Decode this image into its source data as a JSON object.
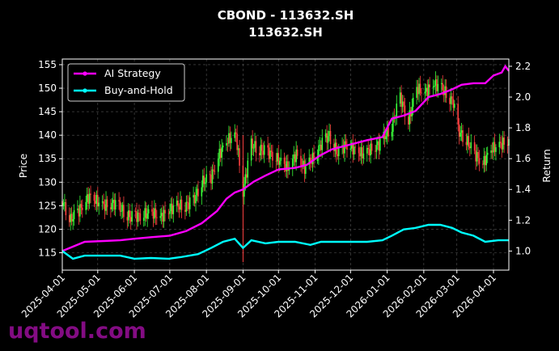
{
  "chart_data": {
    "type": "line",
    "title": "CBOND - 113632.SH",
    "subtitle": "113632.SH",
    "ylabel_left": "Price",
    "ylabel_right": "Return",
    "watermark": "uqtool.com",
    "x_dates": [
      "2025-04-01",
      "2025-05-01",
      "2025-06-01",
      "2025-07-01",
      "2025-08-01",
      "2025-09-01",
      "2025-10-01",
      "2025-11-01",
      "2025-12-01",
      "2026-01-01",
      "2026-02-01",
      "2026-03-01",
      "2026-04-01"
    ],
    "x_range": [
      "2025-04-01",
      "2026-04-14"
    ],
    "y_left_ticks": [
      115,
      120,
      125,
      130,
      135,
      140,
      145,
      150,
      155
    ],
    "y_left_range": [
      111.3,
      156.2
    ],
    "y_right_ticks": [
      "1.0",
      "1.2",
      "1.4",
      "1.6",
      "1.8",
      "2.0",
      "2.2"
    ],
    "y_right_range": [
      0.876,
      2.247
    ],
    "legend_position": "upper-left",
    "grid": true,
    "colors": {
      "up": "#39ff39",
      "down": "#ff4040",
      "ai": "#ff00ff",
      "bh": "#00ffff"
    },
    "price_series": {
      "name": "Price",
      "points": [
        [
          "2025-04-01",
          126
        ],
        [
          "2025-04-08",
          122
        ],
        [
          "2025-04-15",
          124
        ],
        [
          "2025-04-24",
          127
        ],
        [
          "2025-05-06",
          125
        ],
        [
          "2025-05-15",
          125.5
        ],
        [
          "2025-05-22",
          124
        ],
        [
          "2025-05-29",
          122.5
        ],
        [
          "2025-06-06",
          123
        ],
        [
          "2025-06-16",
          123.5
        ],
        [
          "2025-06-23",
          122.5
        ],
        [
          "2025-06-30",
          124
        ],
        [
          "2025-07-07",
          125
        ],
        [
          "2025-07-14",
          125
        ],
        [
          "2025-07-21",
          126
        ],
        [
          "2025-07-28",
          130
        ],
        [
          "2025-08-05",
          131
        ],
        [
          "2025-08-12",
          136
        ],
        [
          "2025-08-19",
          139
        ],
        [
          "2025-08-26",
          140
        ],
        [
          "2025-09-01",
          128
        ],
        [
          "2025-09-08",
          138
        ],
        [
          "2025-09-15",
          137
        ],
        [
          "2025-09-25",
          136
        ],
        [
          "2025-10-09",
          133
        ],
        [
          "2025-10-16",
          136
        ],
        [
          "2025-10-23",
          133
        ],
        [
          "2025-10-30",
          135
        ],
        [
          "2025-11-06",
          138
        ],
        [
          "2025-11-13",
          140
        ],
        [
          "2025-11-20",
          136
        ],
        [
          "2025-11-27",
          138
        ],
        [
          "2025-12-04",
          137
        ],
        [
          "2025-12-11",
          136
        ],
        [
          "2025-12-18",
          137
        ],
        [
          "2025-12-25",
          138
        ],
        [
          "2026-01-05",
          142
        ],
        [
          "2026-01-12",
          148
        ],
        [
          "2026-01-19",
          143
        ],
        [
          "2026-01-26",
          150
        ],
        [
          "2026-02-02",
          149
        ],
        [
          "2026-02-09",
          151
        ],
        [
          "2026-02-16",
          150
        ],
        [
          "2026-02-26",
          147
        ],
        [
          "2026-03-02",
          141
        ],
        [
          "2026-03-09",
          139
        ],
        [
          "2026-03-16",
          136
        ],
        [
          "2026-03-23",
          134
        ],
        [
          "2026-03-30",
          137
        ],
        [
          "2026-04-07",
          138
        ],
        [
          "2026-04-14",
          139
        ]
      ]
    },
    "series": [
      {
        "name": "AI Strategy",
        "points": [
          [
            "2025-04-01",
            1.0
          ],
          [
            "2025-04-20",
            1.06
          ],
          [
            "2025-05-06",
            1.065
          ],
          [
            "2025-05-20",
            1.07
          ],
          [
            "2025-06-01",
            1.08
          ],
          [
            "2025-06-15",
            1.09
          ],
          [
            "2025-07-01",
            1.1
          ],
          [
            "2025-07-15",
            1.13
          ],
          [
            "2025-07-28",
            1.18
          ],
          [
            "2025-08-10",
            1.26
          ],
          [
            "2025-08-18",
            1.34
          ],
          [
            "2025-08-25",
            1.38
          ],
          [
            "2025-09-01",
            1.4
          ],
          [
            "2025-09-10",
            1.45
          ],
          [
            "2025-09-20",
            1.49
          ],
          [
            "2025-10-01",
            1.53
          ],
          [
            "2025-10-15",
            1.54
          ],
          [
            "2025-10-25",
            1.56
          ],
          [
            "2025-11-05",
            1.62
          ],
          [
            "2025-11-15",
            1.66
          ],
          [
            "2025-11-25",
            1.68
          ],
          [
            "2025-12-05",
            1.7
          ],
          [
            "2025-12-15",
            1.72
          ],
          [
            "2025-12-28",
            1.74
          ],
          [
            "2026-01-05",
            1.86
          ],
          [
            "2026-01-15",
            1.88
          ],
          [
            "2026-01-25",
            1.91
          ],
          [
            "2026-02-05",
            2.0
          ],
          [
            "2026-02-15",
            2.02
          ],
          [
            "2026-02-25",
            2.05
          ],
          [
            "2026-03-05",
            2.08
          ],
          [
            "2026-03-15",
            2.09
          ],
          [
            "2026-03-25",
            2.09
          ],
          [
            "2026-04-01",
            2.14
          ],
          [
            "2026-04-08",
            2.16
          ],
          [
            "2026-04-11",
            2.2
          ],
          [
            "2026-04-14",
            2.17
          ]
        ]
      },
      {
        "name": "Buy-and-Hold",
        "points": [
          [
            "2025-04-01",
            1.0
          ],
          [
            "2025-04-10",
            0.95
          ],
          [
            "2025-04-20",
            0.97
          ],
          [
            "2025-05-06",
            0.97
          ],
          [
            "2025-05-20",
            0.97
          ],
          [
            "2025-06-01",
            0.95
          ],
          [
            "2025-06-15",
            0.955
          ],
          [
            "2025-06-30",
            0.95
          ],
          [
            "2025-07-10",
            0.96
          ],
          [
            "2025-07-25",
            0.98
          ],
          [
            "2025-08-05",
            1.02
          ],
          [
            "2025-08-15",
            1.06
          ],
          [
            "2025-08-25",
            1.08
          ],
          [
            "2025-09-01",
            1.02
          ],
          [
            "2025-09-08",
            1.07
          ],
          [
            "2025-09-20",
            1.05
          ],
          [
            "2025-10-01",
            1.06
          ],
          [
            "2025-10-15",
            1.06
          ],
          [
            "2025-10-28",
            1.04
          ],
          [
            "2025-11-06",
            1.06
          ],
          [
            "2025-11-20",
            1.06
          ],
          [
            "2025-12-01",
            1.06
          ],
          [
            "2025-12-15",
            1.06
          ],
          [
            "2025-12-28",
            1.07
          ],
          [
            "2026-01-05",
            1.1
          ],
          [
            "2026-01-15",
            1.14
          ],
          [
            "2026-01-25",
            1.15
          ],
          [
            "2026-02-05",
            1.17
          ],
          [
            "2026-02-15",
            1.17
          ],
          [
            "2026-02-25",
            1.15
          ],
          [
            "2026-03-05",
            1.12
          ],
          [
            "2026-03-15",
            1.1
          ],
          [
            "2026-03-25",
            1.06
          ],
          [
            "2026-04-05",
            1.07
          ],
          [
            "2026-04-14",
            1.07
          ]
        ]
      }
    ]
  }
}
